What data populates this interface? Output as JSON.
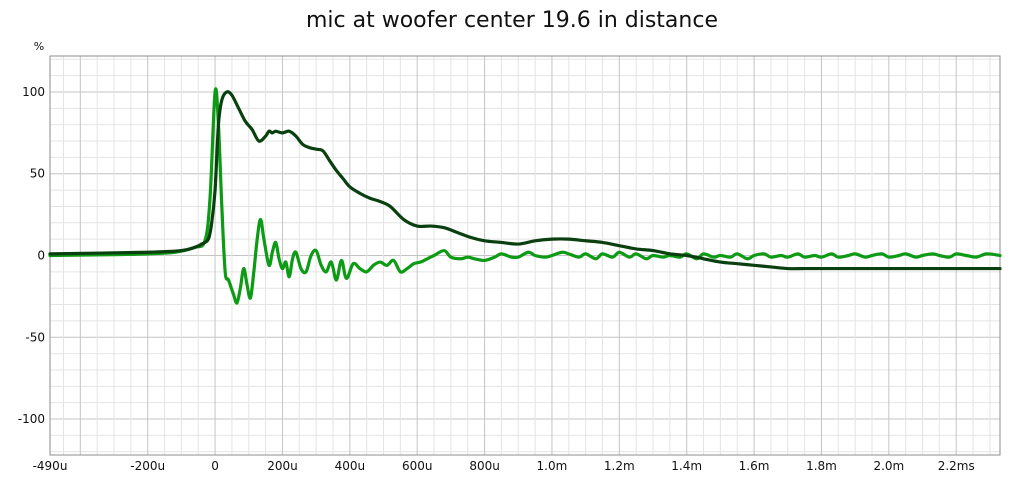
{
  "chart_data": {
    "type": "line",
    "title": "mic at woofer center 19.6 in distance",
    "ylabel": "%",
    "xlabel": "",
    "xlim": [
      -490,
      2330
    ],
    "ylim": [
      -122,
      122
    ],
    "x_unit": "microseconds",
    "x_ticks": [
      {
        "value": -490,
        "label": "-490u"
      },
      {
        "value": -200,
        "label": "-200u"
      },
      {
        "value": 0,
        "label": "0"
      },
      {
        "value": 200,
        "label": "200u"
      },
      {
        "value": 400,
        "label": "400u"
      },
      {
        "value": 600,
        "label": "600u"
      },
      {
        "value": 800,
        "label": "800u"
      },
      {
        "value": 1000,
        "label": "1.0m"
      },
      {
        "value": 1200,
        "label": "1.2m"
      },
      {
        "value": 1400,
        "label": "1.4m"
      },
      {
        "value": 1600,
        "label": "1.6m"
      },
      {
        "value": 1800,
        "label": "1.8m"
      },
      {
        "value": 2000,
        "label": "2.0m"
      },
      {
        "value": 2200,
        "label": "2.2ms"
      }
    ],
    "y_ticks": [
      {
        "value": 100,
        "label": "100"
      },
      {
        "value": 50,
        "label": "50"
      },
      {
        "value": 0,
        "label": "0"
      },
      {
        "value": -50,
        "label": "-50"
      },
      {
        "value": -100,
        "label": "-100"
      }
    ],
    "grid": true,
    "series": [
      {
        "color": "#0d9a14",
        "x": [
          -490,
          -300,
          -200,
          -120,
          -60,
          -30,
          -15,
          0,
          10,
          20,
          30,
          40,
          55,
          65,
          75,
          85,
          95,
          105,
          115,
          125,
          135,
          145,
          160,
          170,
          180,
          190,
          200,
          210,
          220,
          230,
          240,
          255,
          270,
          285,
          300,
          315,
          330,
          345,
          360,
          375,
          390,
          410,
          430,
          450,
          470,
          490,
          510,
          530,
          550,
          570,
          590,
          610,
          630,
          650,
          680,
          700,
          730,
          750,
          770,
          800,
          830,
          850,
          880,
          900,
          930,
          950,
          980,
          1000,
          1030,
          1050,
          1080,
          1100,
          1130,
          1150,
          1180,
          1200,
          1230,
          1250,
          1280,
          1300,
          1330,
          1350,
          1380,
          1400,
          1430,
          1450,
          1480,
          1500,
          1530,
          1550,
          1580,
          1600,
          1630,
          1650,
          1680,
          1700,
          1730,
          1750,
          1780,
          1800,
          1830,
          1850,
          1880,
          1900,
          1930,
          1950,
          1980,
          2000,
          2030,
          2050,
          2080,
          2100,
          2130,
          2150,
          2180,
          2200,
          2230,
          2260,
          2290,
          2330
        ],
        "y": [
          0,
          0.5,
          1,
          2,
          5,
          9,
          35,
          100,
          80,
          30,
          -10,
          -15,
          -24,
          -29,
          -20,
          -8,
          -18,
          -26,
          -10,
          10,
          22,
          10,
          -6,
          2,
          8,
          -2,
          -8,
          -4,
          -13,
          -2,
          2,
          -8,
          -10,
          0,
          3,
          -6,
          -10,
          -4,
          -15,
          -3,
          -14,
          -5,
          -8,
          -10,
          -6,
          -4,
          -6,
          -3,
          -10,
          -8,
          -5,
          -4,
          -2,
          0,
          3,
          -1,
          -2,
          -1,
          -2,
          -3,
          -1,
          1,
          -1,
          -1,
          2,
          0,
          -1,
          0,
          2,
          1,
          -1,
          1,
          -2,
          1,
          -1,
          2,
          -1,
          1,
          -2,
          0,
          -1,
          0,
          -1,
          1,
          -2,
          1,
          -1,
          0,
          -1,
          1,
          -2,
          0,
          1,
          -1,
          0,
          -1,
          1,
          -1,
          0,
          -1,
          1,
          -1,
          0,
          1,
          -1,
          0,
          1,
          -1,
          0,
          1,
          -1,
          0,
          1,
          0,
          -1,
          1,
          0,
          -1,
          1,
          0
        ],
        "values": [
          0,
          0.5,
          1,
          2,
          5,
          9,
          35,
          100,
          80,
          30,
          -10,
          -15,
          -24,
          -29,
          -20,
          -8,
          -18,
          -26,
          -10,
          10,
          22,
          10,
          -6,
          2,
          8,
          -2,
          -8,
          -4,
          -13,
          -2,
          2,
          -8,
          -10,
          0,
          3,
          -6,
          -10,
          -4,
          -15,
          -3,
          -14,
          -5,
          -8,
          -10,
          -6,
          -4,
          -6,
          -3,
          -10,
          -8,
          -5,
          -4,
          -2,
          0,
          3,
          -1,
          -2,
          -1,
          -2,
          -3,
          -1,
          1,
          -1,
          -1,
          2,
          0,
          -1,
          0,
          2,
          1,
          -1,
          1,
          -2,
          1,
          -1,
          2,
          -1,
          1,
          -2,
          0,
          -1,
          0,
          -1,
          1,
          -2,
          1,
          -1,
          0,
          -1,
          1,
          -2,
          0,
          1,
          -1,
          0,
          -1,
          1,
          -1,
          0,
          -1,
          1,
          -1,
          0,
          1,
          -1,
          0,
          1,
          -1,
          0,
          1,
          -1,
          0,
          1,
          0,
          -1,
          1,
          0,
          -1,
          1,
          0
        ]
      },
      {
        "color": "#0a3f0f",
        "x": [
          -490,
          -200,
          -100,
          -60,
          -40,
          -20,
          -10,
          0,
          10,
          20,
          35,
          50,
          70,
          90,
          110,
          130,
          150,
          160,
          170,
          180,
          200,
          220,
          240,
          260,
          280,
          300,
          320,
          340,
          360,
          380,
          400,
          430,
          460,
          490,
          520,
          560,
          600,
          640,
          680,
          720,
          760,
          800,
          850,
          900,
          950,
          1000,
          1050,
          1100,
          1150,
          1200,
          1250,
          1300,
          1350,
          1400,
          1450,
          1500,
          1550,
          1600,
          1650,
          1700,
          1750,
          1800,
          1850,
          1900,
          1950,
          2000,
          2050,
          2100,
          2150,
          2200,
          2250,
          2300,
          2330
        ],
        "y": [
          1,
          2,
          3,
          5,
          7,
          10,
          20,
          40,
          80,
          95,
          100,
          98,
          90,
          82,
          77,
          70,
          73,
          76,
          75,
          76,
          75,
          76,
          73,
          68,
          66,
          65,
          64,
          58,
          52,
          47,
          42,
          38,
          35,
          33,
          30,
          22,
          18,
          18,
          17,
          14,
          11,
          9,
          8,
          7,
          9,
          10,
          10,
          9,
          8,
          6,
          4,
          3,
          1,
          0,
          -2,
          -4,
          -5,
          -6,
          -7,
          -8,
          -8,
          -8,
          -8,
          -8,
          -8,
          -8,
          -8,
          -8,
          -8,
          -8,
          -8,
          -8,
          -8
        ],
        "values": [
          1,
          2,
          3,
          5,
          7,
          10,
          20,
          40,
          80,
          95,
          100,
          98,
          90,
          82,
          77,
          70,
          73,
          76,
          75,
          76,
          75,
          76,
          73,
          68,
          66,
          65,
          64,
          58,
          52,
          47,
          42,
          38,
          35,
          33,
          30,
          22,
          18,
          18,
          17,
          14,
          11,
          9,
          8,
          7,
          9,
          10,
          10,
          9,
          8,
          6,
          4,
          3,
          1,
          0,
          -2,
          -4,
          -5,
          -6,
          -7,
          -8,
          -8,
          -8,
          -8,
          -8,
          -8,
          -8,
          -8,
          -8,
          -8,
          -8,
          -8,
          -8,
          -8
        ]
      }
    ]
  }
}
